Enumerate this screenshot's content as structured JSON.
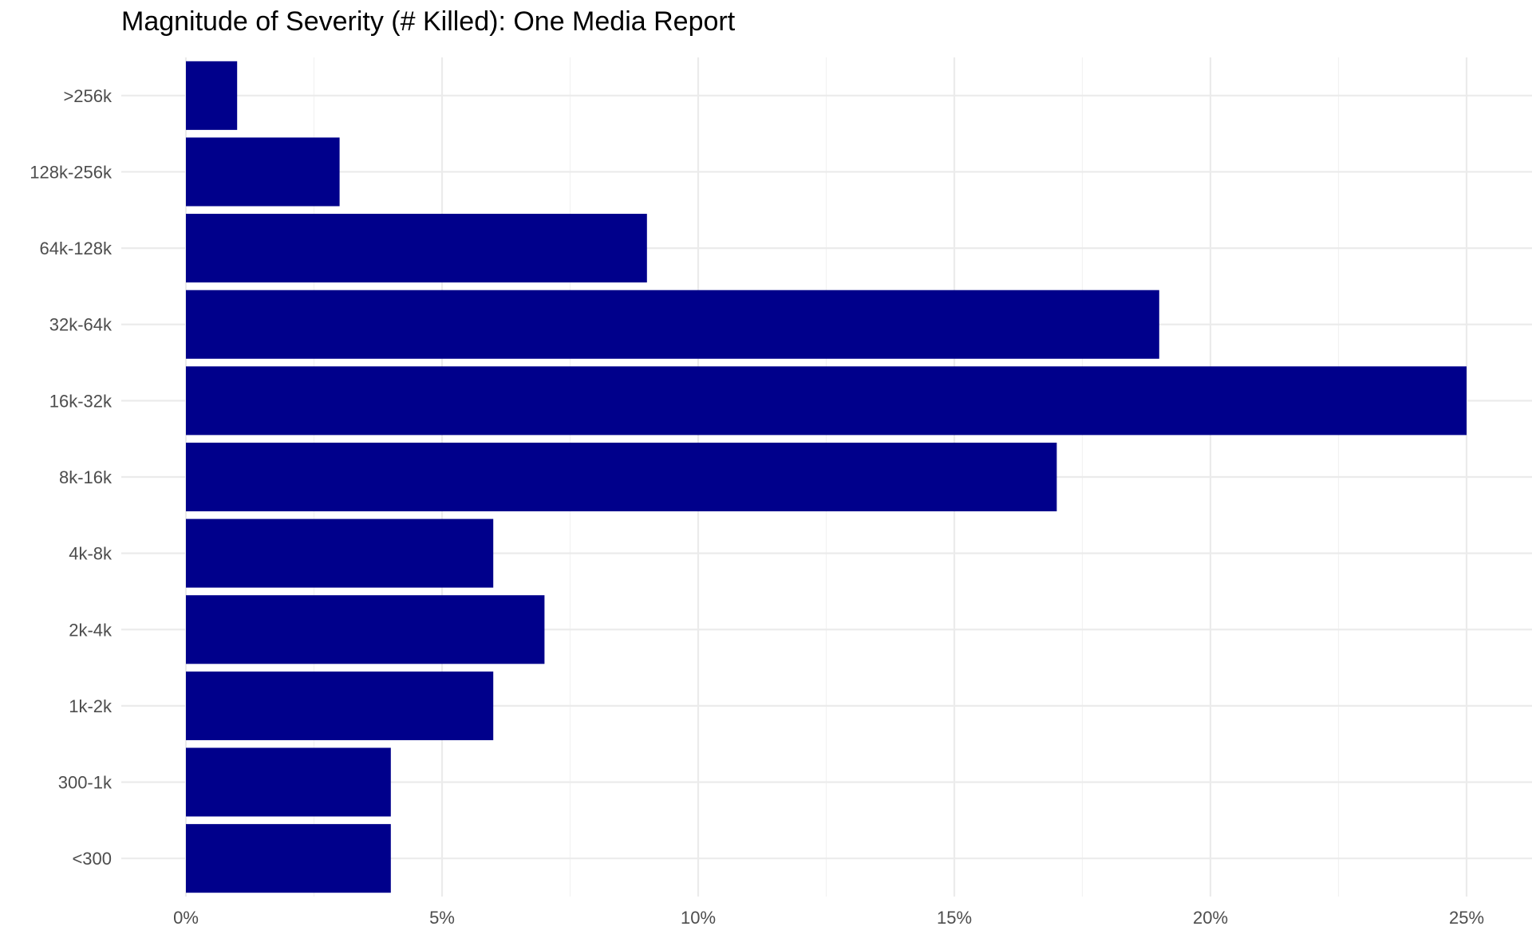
{
  "chart_data": {
    "type": "bar",
    "orientation": "horizontal",
    "title": "Magnitude of Severity (# Killed): One Media Report",
    "xlabel": "",
    "ylabel": "",
    "categories": [
      ">256k",
      "128k-256k",
      "64k-128k",
      "32k-64k",
      "16k-32k",
      "8k-16k",
      "4k-8k",
      "2k-4k",
      "1k-2k",
      "300-1k",
      "<300"
    ],
    "values": [
      1,
      3,
      9,
      19,
      25,
      17,
      6,
      7,
      6,
      4,
      4
    ],
    "value_unit": "%",
    "xlim": [
      0,
      26
    ],
    "x_ticks": [
      0,
      5,
      10,
      15,
      20,
      25
    ],
    "x_tick_labels": [
      "0%",
      "5%",
      "10%",
      "15%",
      "20%",
      "25%"
    ],
    "grid": true,
    "legend": "none",
    "colors": {
      "bar": "#00008B",
      "background": "#ffffff"
    }
  }
}
